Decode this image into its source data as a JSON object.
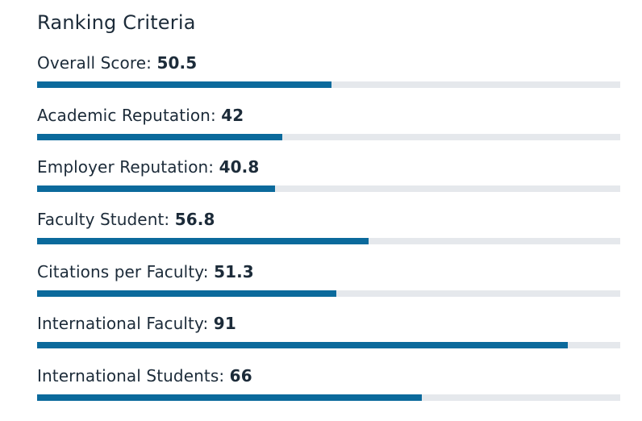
{
  "title": "Ranking Criteria",
  "colors": {
    "bar_fill": "#0b6a9c",
    "bar_track": "#e5e8ec",
    "text": "#1c2b39"
  },
  "criteria": [
    {
      "label": "Overall Score:",
      "value": "50.5",
      "level": 0.505
    },
    {
      "label": "Academic Reputation:",
      "value": "42",
      "level": 0.42
    },
    {
      "label": "Employer Reputation:",
      "value": "40.8",
      "level": 0.408
    },
    {
      "label": "Faculty Student:",
      "value": "56.8",
      "level": 0.568
    },
    {
      "label": "Citations per Faculty:",
      "value": "51.3",
      "level": 0.513
    },
    {
      "label": "International Faculty:",
      "value": "91",
      "level": 0.91
    },
    {
      "label": "International Students:",
      "value": "66",
      "level": 0.66
    }
  ]
}
